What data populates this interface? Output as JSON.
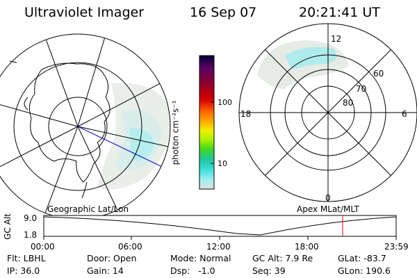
{
  "header": {
    "instrument": "Ultraviolet Imager",
    "date": "16 Sep 07",
    "time": "20:21:41 UT"
  },
  "geo_map": {
    "label": "Geographic Lat/Lon"
  },
  "apex_map": {
    "label": "Apex MLat/MLT",
    "mlt_labels": {
      "top": "12",
      "left": "18",
      "right": "6",
      "bottom": "0"
    },
    "lat_labels": [
      "60",
      "70",
      "80"
    ]
  },
  "colorbar": {
    "units": "photon cm⁻²s⁻¹",
    "ticks": [
      "100",
      "10"
    ],
    "scale": "log",
    "colors": [
      "#000033",
      "#5a0066",
      "#8a0030",
      "#d80000",
      "#ff6600",
      "#ffb000",
      "#f0f000",
      "#aef000",
      "#40d820",
      "#20c8a0",
      "#40e0e0",
      "#a0f0f0",
      "#e0e0e0"
    ]
  },
  "altitude_plot": {
    "ylabel": "GC Alt",
    "ymax_label": "9.0",
    "ymin_label": "1.8",
    "x_ticks": [
      "00:00",
      "06:00",
      "12:00",
      "18:00",
      "23:59"
    ],
    "marker_color": "#ff0000"
  },
  "info": {
    "flt": "Flt: LBHL",
    "ip": "IP: 36.0",
    "door": "Door: Open",
    "gain": "Gain: 14",
    "mode": "Mode: Normal",
    "dsp": "Dsp:   -1.0",
    "gc_alt": "GC Alt: 7.9 Re",
    "seq": "Seq: 39",
    "glat": "GLat: -83.7",
    "glon": "GLon: 190.6"
  }
}
